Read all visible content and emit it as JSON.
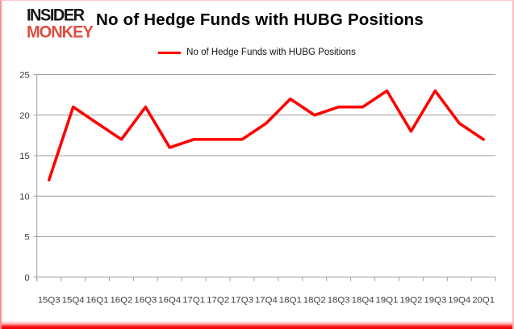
{
  "logo": {
    "line1": "INSIDER",
    "line2": "MONKEY"
  },
  "header": {
    "title": "No of Hedge Funds with HUBG Positions"
  },
  "legend": {
    "label": "No of Hedge Funds with HUBG Positions"
  },
  "colors": {
    "line": "#FF0000",
    "logo_black": "#151515",
    "logo_red": "#DC4F43",
    "grid": "#9D9D9D",
    "axis_text": "#404040",
    "frame_pink": "#FF8F8F",
    "frame_bottom_red": "#E60000",
    "background": "#FFFFFF"
  },
  "chart_data": {
    "type": "line",
    "title": "No of Hedge Funds with HUBG Positions",
    "xlabel": "",
    "ylabel": "",
    "categories": [
      "15Q3",
      "15Q4",
      "16Q1",
      "16Q2",
      "16Q3",
      "16Q4",
      "17Q1",
      "17Q2",
      "17Q3",
      "17Q4",
      "18Q1",
      "18Q2",
      "18Q3",
      "18Q4",
      "19Q1",
      "19Q2",
      "19Q3",
      "19Q4",
      "20Q1"
    ],
    "series": [
      {
        "name": "No of Hedge Funds with HUBG Positions",
        "values": [
          12,
          21,
          19,
          17,
          21,
          16,
          17,
          17,
          17,
          19,
          22,
          20,
          21,
          21,
          23,
          18,
          23,
          19,
          17
        ]
      }
    ],
    "ylim": [
      0,
      25
    ],
    "yticks": [
      0,
      5,
      10,
      15,
      20,
      25
    ],
    "grid": true,
    "legend_position": "top"
  }
}
